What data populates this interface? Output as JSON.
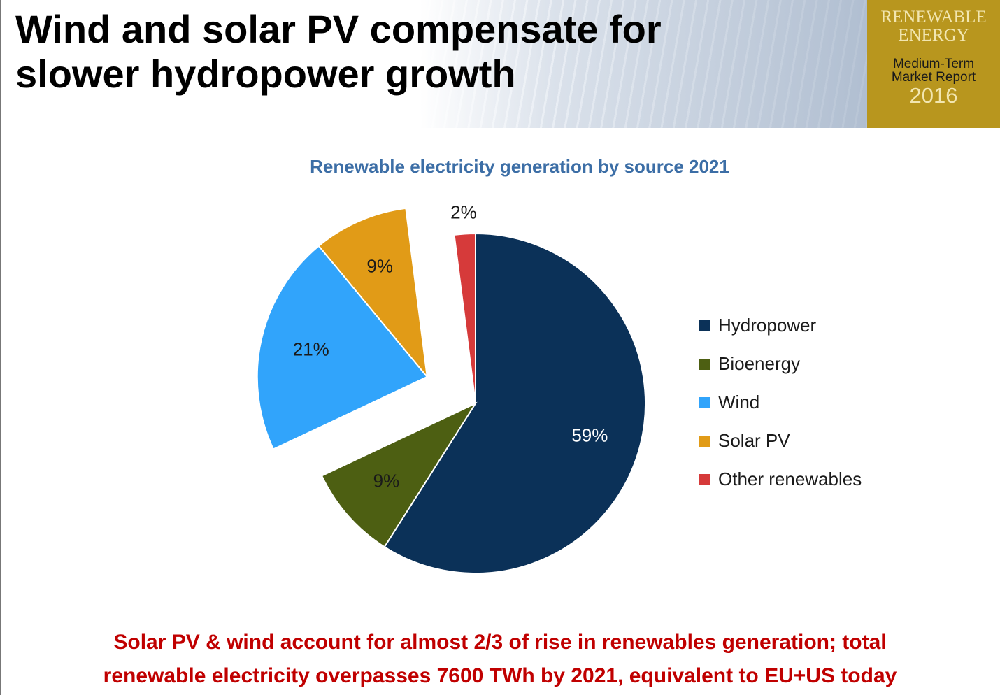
{
  "header": {
    "title_lines": [
      "Wind and solar PV compensate for",
      "slower hydropower growth"
    ],
    "badge": {
      "lines": [
        "RENEWABLE",
        "ENERGY"
      ],
      "subtitle_lines": [
        "Medium-Term",
        "Market Report"
      ],
      "year": "2016"
    }
  },
  "chart_data": {
    "type": "pie",
    "title": "Renewable electricity generation by source 2021",
    "categories": [
      "Hydropower",
      "Bioenergy",
      "Wind",
      "Solar PV",
      "Other renewables"
    ],
    "values": [
      59,
      9,
      21,
      9,
      2
    ],
    "value_labels": [
      "59%",
      "9%",
      "21%",
      "9%",
      "2%"
    ],
    "colors": [
      "#0b3158",
      "#4d5f12",
      "#31a4fb",
      "#e19b17",
      "#d63a3a"
    ],
    "explode": [
      false,
      false,
      true,
      true,
      false
    ],
    "legend": "right"
  },
  "footer": {
    "lines": [
      "Solar PV & wind account for almost 2/3 of rise in renewables generation; total",
      "renewable electricity overpasses 7600 TWh by 2021, equivalent to EU+US today"
    ]
  }
}
